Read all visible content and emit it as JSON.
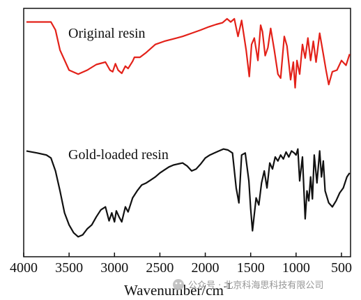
{
  "chart_data": {
    "type": "line",
    "xlabel": "Wavenumber/cm",
    "xlabel_sup": "-1",
    "ylabel": "",
    "xlim": [
      4000,
      400
    ],
    "x_reversed": true,
    "grid": false,
    "x_ticks": [
      4000,
      3500,
      3000,
      2500,
      2000,
      1500,
      1000,
      500
    ],
    "annotations": [
      "Original resin",
      "Gold-loaded resin"
    ],
    "series": [
      {
        "name": "Original resin",
        "color": "#e32119",
        "x": [
          3970,
          3800,
          3700,
          3650,
          3600,
          3500,
          3400,
          3300,
          3200,
          3100,
          3050,
          3020,
          2990,
          2960,
          2920,
          2880,
          2850,
          2800,
          2780,
          2720,
          2650,
          2550,
          2450,
          2350,
          2250,
          2150,
          2050,
          1960,
          1880,
          1810,
          1760,
          1720,
          1680,
          1640,
          1600,
          1550,
          1515,
          1490,
          1460,
          1420,
          1390,
          1370,
          1340,
          1310,
          1280,
          1240,
          1200,
          1170,
          1130,
          1100,
          1060,
          1030,
          1010,
          990,
          960,
          930,
          900,
          870,
          840,
          810,
          780,
          740,
          700,
          670,
          640,
          600,
          550,
          500,
          450,
          410
        ],
        "y": [
          0.9,
          0.9,
          0.9,
          0.8,
          0.55,
          0.3,
          0.25,
          0.3,
          0.37,
          0.4,
          0.3,
          0.28,
          0.38,
          0.3,
          0.26,
          0.35,
          0.32,
          0.41,
          0.46,
          0.46,
          0.52,
          0.62,
          0.66,
          0.69,
          0.72,
          0.76,
          0.8,
          0.84,
          0.87,
          0.89,
          0.94,
          0.9,
          0.94,
          0.72,
          0.92,
          0.55,
          0.22,
          0.62,
          0.7,
          0.42,
          0.86,
          0.78,
          0.48,
          0.58,
          0.82,
          0.55,
          0.25,
          0.2,
          0.72,
          0.6,
          0.18,
          0.4,
          0.08,
          0.42,
          0.25,
          0.62,
          0.45,
          0.7,
          0.42,
          0.66,
          0.4,
          0.76,
          0.5,
          0.3,
          0.12,
          0.28,
          0.3,
          0.42,
          0.36,
          0.5
        ]
      },
      {
        "name": "Gold-loaded resin",
        "color": "#111111",
        "x": [
          3970,
          3850,
          3750,
          3700,
          3650,
          3600,
          3550,
          3500,
          3450,
          3400,
          3350,
          3300,
          3250,
          3200,
          3150,
          3100,
          3060,
          3030,
          3000,
          2980,
          2950,
          2920,
          2880,
          2850,
          2800,
          2750,
          2700,
          2650,
          2600,
          2550,
          2500,
          2450,
          2400,
          2350,
          2300,
          2250,
          2200,
          2150,
          2100,
          2050,
          2000,
          1950,
          1900,
          1850,
          1800,
          1750,
          1700,
          1660,
          1630,
          1600,
          1560,
          1520,
          1500,
          1480,
          1440,
          1410,
          1380,
          1350,
          1320,
          1290,
          1260,
          1230,
          1200,
          1170,
          1140,
          1110,
          1080,
          1050,
          1020,
          1000,
          980,
          960,
          930,
          900,
          880,
          860,
          840,
          820,
          800,
          770,
          740,
          720,
          700,
          680,
          640,
          600,
          560,
          520,
          480,
          440,
          410
        ],
        "y": [
          0.92,
          0.9,
          0.88,
          0.85,
          0.72,
          0.52,
          0.3,
          0.18,
          0.1,
          0.06,
          0.08,
          0.14,
          0.18,
          0.26,
          0.33,
          0.36,
          0.22,
          0.3,
          0.21,
          0.32,
          0.26,
          0.21,
          0.36,
          0.31,
          0.45,
          0.52,
          0.58,
          0.6,
          0.63,
          0.66,
          0.7,
          0.73,
          0.76,
          0.78,
          0.79,
          0.8,
          0.77,
          0.72,
          0.74,
          0.79,
          0.85,
          0.88,
          0.9,
          0.92,
          0.94,
          0.93,
          0.9,
          0.55,
          0.4,
          0.88,
          0.9,
          0.62,
          0.34,
          0.12,
          0.45,
          0.38,
          0.6,
          0.72,
          0.55,
          0.8,
          0.74,
          0.86,
          0.82,
          0.88,
          0.84,
          0.91,
          0.86,
          0.92,
          0.9,
          0.88,
          0.94,
          0.62,
          0.86,
          0.24,
          0.52,
          0.42,
          0.66,
          0.44,
          0.88,
          0.6,
          0.92,
          0.66,
          0.82,
          0.52,
          0.4,
          0.36,
          0.42,
          0.5,
          0.55,
          0.66,
          0.7
        ]
      }
    ]
  },
  "watermark": "公众号 · 北京科海思科技有限公司"
}
